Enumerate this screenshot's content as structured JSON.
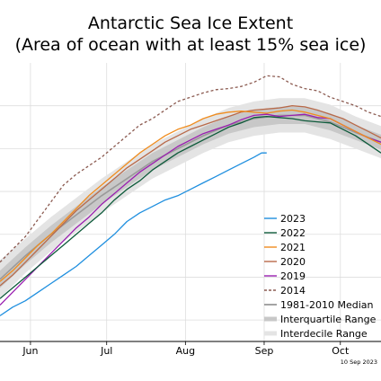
{
  "chart_data": {
    "type": "line",
    "title": "Antarctic Sea Ice Extent",
    "subtitle": "(Area of ocean with at least 15% sea ice)",
    "date_stamp": "10 Sep 2023",
    "x_ticks": [
      {
        "label": "Jun",
        "day": 152
      },
      {
        "label": "Jul",
        "day": 182
      },
      {
        "label": "Aug",
        "day": 213
      },
      {
        "label": "Sep",
        "day": 244
      },
      {
        "label": "Oct",
        "day": 274
      }
    ],
    "xlim": [
      140,
      290
    ],
    "ylim": [
      8,
      21
    ],
    "grid": true,
    "legend_position": "bottom-right",
    "colors": {
      "y2023": "#1f8fdf",
      "y2022": "#0d5a3a",
      "y2021": "#f08c1e",
      "y2020": "#b86a4a",
      "y2019": "#9a1fb0",
      "y2014": "#8b5a50",
      "median": "#9a9a9a",
      "iqr": "#c8c8c8",
      "idr": "#e4e4e4"
    },
    "bands": {
      "x": [
        140,
        150,
        160,
        170,
        180,
        190,
        200,
        210,
        220,
        230,
        240,
        250,
        260,
        270,
        280,
        290
      ],
      "median": [
        10.9,
        12.0,
        13.0,
        13.9,
        14.8,
        15.6,
        16.4,
        17.0,
        17.6,
        18.1,
        18.4,
        18.55,
        18.55,
        18.25,
        17.75,
        17.3
      ],
      "iqr_low": [
        10.5,
        11.6,
        12.6,
        13.5,
        14.4,
        15.2,
        16.0,
        16.6,
        17.2,
        17.7,
        18.0,
        18.15,
        18.15,
        17.85,
        17.4,
        16.95
      ],
      "iqr_high": [
        11.3,
        12.4,
        13.4,
        14.3,
        15.2,
        16.0,
        16.8,
        17.4,
        18.0,
        18.5,
        18.8,
        18.95,
        18.95,
        18.65,
        18.1,
        17.65
      ],
      "idr_low": [
        10.0,
        11.2,
        12.2,
        13.1,
        14.0,
        14.8,
        15.6,
        16.2,
        16.8,
        17.3,
        17.6,
        17.75,
        17.75,
        17.45,
        17.0,
        16.55
      ],
      "idr_high": [
        11.8,
        12.8,
        13.8,
        14.7,
        15.6,
        16.4,
        17.2,
        17.8,
        18.4,
        18.9,
        19.2,
        19.35,
        19.35,
        19.05,
        18.5,
        18.05
      ]
    },
    "series": [
      {
        "key": "y2023",
        "name": "2023",
        "style": "solid",
        "x": [
          140,
          145,
          150,
          155,
          160,
          165,
          170,
          175,
          180,
          185,
          190,
          195,
          200,
          205,
          210,
          215,
          220,
          225,
          230,
          235,
          240,
          243,
          245
        ],
        "values": [
          9.2,
          9.6,
          9.9,
          10.3,
          10.7,
          11.1,
          11.5,
          12.0,
          12.5,
          13.0,
          13.6,
          14.0,
          14.3,
          14.6,
          14.8,
          15.1,
          15.4,
          15.7,
          16.0,
          16.3,
          16.6,
          16.8,
          16.8
        ]
      },
      {
        "key": "y2022",
        "name": "2022",
        "style": "solid",
        "x": [
          140,
          145,
          150,
          155,
          160,
          165,
          170,
          175,
          180,
          185,
          190,
          195,
          200,
          205,
          210,
          215,
          220,
          225,
          230,
          235,
          240,
          245,
          250,
          255,
          260,
          265,
          270,
          275,
          280,
          285,
          290
        ],
        "values": [
          10.0,
          10.5,
          11.0,
          11.5,
          12.0,
          12.5,
          13.0,
          13.5,
          14.0,
          14.6,
          15.1,
          15.5,
          16.0,
          16.4,
          16.8,
          17.1,
          17.4,
          17.7,
          18.0,
          18.2,
          18.45,
          18.5,
          18.45,
          18.4,
          18.3,
          18.25,
          18.2,
          17.9,
          17.6,
          17.2,
          16.8
        ]
      },
      {
        "key": "y2021",
        "name": "2021",
        "style": "solid",
        "x": [
          140,
          145,
          150,
          155,
          160,
          165,
          170,
          175,
          180,
          185,
          190,
          195,
          200,
          205,
          210,
          215,
          220,
          225,
          230,
          235,
          240,
          245,
          250,
          255,
          260,
          265,
          270,
          275,
          280,
          285,
          290
        ],
        "values": [
          10.8,
          11.3,
          11.9,
          12.5,
          13.0,
          13.6,
          14.2,
          14.8,
          15.3,
          15.8,
          16.3,
          16.8,
          17.2,
          17.6,
          17.9,
          18.1,
          18.4,
          18.6,
          18.7,
          18.75,
          18.7,
          18.65,
          18.75,
          18.8,
          18.7,
          18.55,
          18.4,
          18.1,
          17.8,
          17.5,
          17.2
        ]
      },
      {
        "key": "y2020",
        "name": "2020",
        "style": "solid",
        "x": [
          140,
          145,
          150,
          155,
          160,
          165,
          170,
          175,
          180,
          185,
          190,
          195,
          200,
          205,
          210,
          215,
          220,
          225,
          230,
          235,
          240,
          245,
          250,
          255,
          260,
          265,
          270,
          275,
          280,
          285,
          290
        ],
        "values": [
          10.6,
          11.1,
          11.7,
          12.3,
          12.9,
          13.5,
          14.1,
          14.6,
          15.1,
          15.6,
          16.1,
          16.5,
          16.9,
          17.3,
          17.6,
          17.9,
          18.1,
          18.3,
          18.5,
          18.7,
          18.8,
          18.85,
          18.9,
          19.0,
          18.95,
          18.8,
          18.6,
          18.4,
          18.1,
          17.8,
          17.5
        ]
      },
      {
        "key": "y2019",
        "name": "2019",
        "style": "solid",
        "x": [
          140,
          145,
          150,
          155,
          160,
          165,
          170,
          175,
          180,
          185,
          190,
          195,
          200,
          205,
          210,
          215,
          220,
          225,
          230,
          235,
          240,
          245,
          250,
          255,
          260,
          265,
          270,
          275,
          280,
          285,
          290
        ],
        "values": [
          9.7,
          10.3,
          10.9,
          11.5,
          12.1,
          12.7,
          13.3,
          13.8,
          14.4,
          14.9,
          15.4,
          15.9,
          16.3,
          16.7,
          17.1,
          17.4,
          17.7,
          17.9,
          18.1,
          18.35,
          18.55,
          18.6,
          18.5,
          18.55,
          18.6,
          18.45,
          18.4,
          18.1,
          17.8,
          17.5,
          17.3
        ]
      },
      {
        "key": "y2014",
        "name": "2014",
        "style": "dashed",
        "x": [
          140,
          145,
          150,
          155,
          160,
          165,
          170,
          175,
          180,
          185,
          190,
          195,
          200,
          205,
          210,
          215,
          220,
          225,
          230,
          235,
          240,
          245,
          250,
          255,
          260,
          265,
          270,
          275,
          280,
          285,
          290
        ],
        "values": [
          11.7,
          12.3,
          12.9,
          13.7,
          14.5,
          15.3,
          15.8,
          16.2,
          16.6,
          17.1,
          17.6,
          18.1,
          18.4,
          18.8,
          19.2,
          19.4,
          19.6,
          19.75,
          19.8,
          19.9,
          20.1,
          20.4,
          20.35,
          20.0,
          19.8,
          19.7,
          19.4,
          19.2,
          19.0,
          18.7,
          18.5
        ]
      }
    ],
    "legend": [
      {
        "key": "y2023",
        "label": "2023",
        "kind": "line"
      },
      {
        "key": "y2022",
        "label": "2022",
        "kind": "line"
      },
      {
        "key": "y2021",
        "label": "2021",
        "kind": "line"
      },
      {
        "key": "y2020",
        "label": "2020",
        "kind": "line"
      },
      {
        "key": "y2019",
        "label": "2019",
        "kind": "line"
      },
      {
        "key": "y2014",
        "label": "2014",
        "kind": "dashed"
      },
      {
        "key": "median",
        "label": "1981-2010 Median",
        "kind": "line"
      },
      {
        "key": "iqr",
        "label": "Interquartile Range",
        "kind": "band"
      },
      {
        "key": "idr",
        "label": "Interdecile Range",
        "kind": "band"
      }
    ]
  }
}
